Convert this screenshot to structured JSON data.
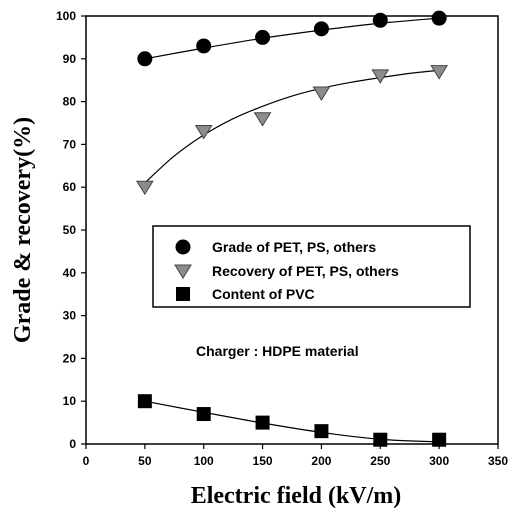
{
  "chart_data": {
    "type": "scatter",
    "xlabel": "Electric field (kV/m)",
    "ylabel": "Grade & recovery(%)",
    "xlim": [
      0,
      350
    ],
    "ylim": [
      0,
      100
    ],
    "xticks": [
      0,
      50,
      100,
      150,
      200,
      250,
      300,
      350
    ],
    "yticks": [
      0,
      10,
      20,
      30,
      40,
      50,
      60,
      70,
      80,
      90,
      100
    ],
    "grid": false,
    "legend_position": "center",
    "annotation": "Charger : HDPE material",
    "series": [
      {
        "name": "Grade of PET, PS, others",
        "marker": "circle",
        "color": "#000000",
        "x": [
          50,
          100,
          150,
          200,
          250,
          300
        ],
        "y": [
          90,
          93,
          95,
          97,
          99,
          99.5
        ],
        "fit": [
          [
            50,
            90
          ],
          [
            100,
            92.5
          ],
          [
            150,
            94.8
          ],
          [
            200,
            96.7
          ],
          [
            250,
            98.3
          ],
          [
            300,
            99.5
          ]
        ]
      },
      {
        "name": "Recovery of PET, PS, others",
        "marker": "triangle-down",
        "color": "#8c8c8c",
        "x": [
          50,
          100,
          150,
          200,
          250,
          300
        ],
        "y": [
          60,
          73,
          76,
          82,
          86,
          87
        ],
        "fit": [
          [
            50,
            61
          ],
          [
            75,
            67.3
          ],
          [
            100,
            72.2
          ],
          [
            125,
            76.0
          ],
          [
            150,
            78.9
          ],
          [
            175,
            81.3
          ],
          [
            200,
            83.1
          ],
          [
            225,
            84.5
          ],
          [
            250,
            85.6
          ],
          [
            275,
            86.6
          ],
          [
            300,
            87.3
          ]
        ]
      },
      {
        "name": "Content of PVC",
        "marker": "square",
        "color": "#000000",
        "x": [
          50,
          100,
          150,
          200,
          250,
          300
        ],
        "y": [
          10,
          7,
          5,
          3,
          1,
          1
        ],
        "fit": [
          [
            50,
            10
          ],
          [
            100,
            7.4
          ],
          [
            150,
            4.9
          ],
          [
            200,
            2.7
          ],
          [
            250,
            1.1
          ],
          [
            300,
            0.5
          ]
        ]
      }
    ]
  }
}
